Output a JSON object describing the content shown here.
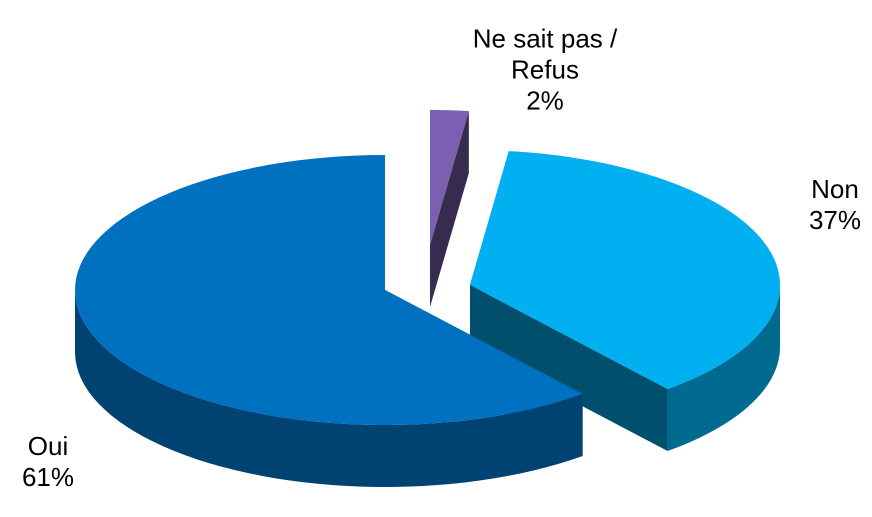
{
  "chart_data": {
    "type": "pie3d",
    "categories": [
      "Ne sait pas / Refus",
      "Non",
      "Oui"
    ],
    "values": [
      2,
      37,
      61
    ],
    "value_labels": [
      "2%",
      "37%",
      "61%"
    ],
    "colors": [
      "#7b5fb0",
      "#00b0f0",
      "#0070c0"
    ]
  }
}
